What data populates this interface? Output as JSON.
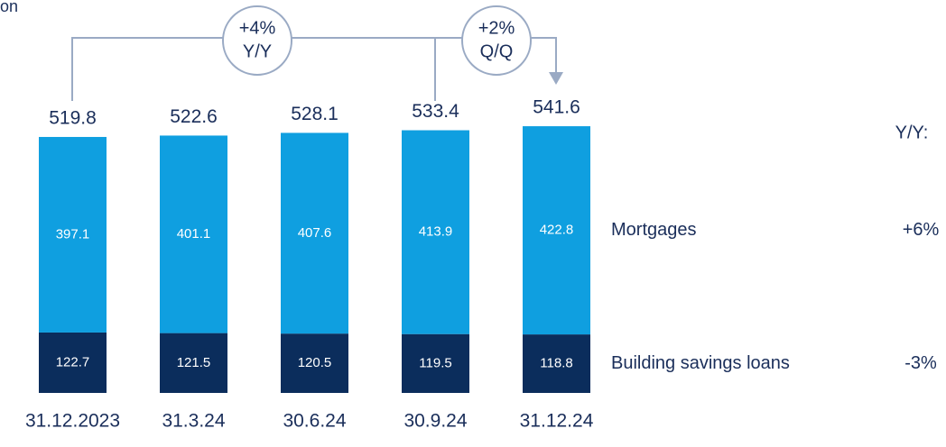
{
  "chart_data": {
    "type": "stacked_bar",
    "title": "on",
    "categories": [
      "31.12.2023",
      "31.3.24",
      "30.6.24",
      "30.9.24",
      "31.12.24"
    ],
    "series": [
      {
        "name": "Building savings loans",
        "color": "#0b2d5c",
        "values": [
          122.7,
          121.5,
          120.5,
          119.5,
          118.8
        ],
        "change": "-3%"
      },
      {
        "name": "Mortgages",
        "color": "#0f9fe0",
        "values": [
          397.1,
          401.1,
          407.6,
          413.9,
          422.8
        ],
        "change": "+6%"
      }
    ],
    "totals": [
      519.8,
      522.6,
      528.1,
      533.4,
      541.6
    ],
    "change_header": "Y/Y:",
    "annotations": [
      {
        "lines": [
          "+4%",
          "Y/Y"
        ]
      },
      {
        "lines": [
          "+2%",
          "Q/Q"
        ]
      }
    ],
    "ylim": [
      0,
      560
    ]
  }
}
